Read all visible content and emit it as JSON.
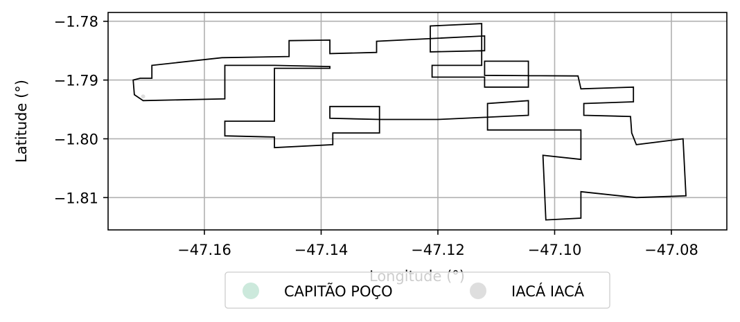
{
  "chart_data": {
    "type": "map",
    "xlabel": "Longitude (°)",
    "ylabel": "Latitude (°)",
    "xlim": [
      -47.1765,
      -47.0705
    ],
    "ylim": [
      -1.8155,
      -1.7785
    ],
    "x_ticks": [
      -47.16,
      -47.14,
      -47.12,
      -47.1,
      -47.08
    ],
    "x_tick_labels": [
      "−47.16",
      "−47.14",
      "−47.12",
      "−47.10",
      "−47.08"
    ],
    "y_ticks": [
      -1.78,
      -1.79,
      -1.8,
      -1.81
    ],
    "y_tick_labels": [
      "−1.78",
      "−1.79",
      "−1.80",
      "−1.81"
    ],
    "grid": true,
    "legend_position": "bottom-center",
    "legend": [
      {
        "label": "CAPITÃO POÇO",
        "color": "#cce9dc"
      },
      {
        "label": "IACÁ IACÁ",
        "color": "#dedede"
      }
    ],
    "boundary": {
      "color": "#000000",
      "coordinates": [
        [
          -47.1705,
          -1.7935
        ],
        [
          -47.172,
          -1.7925
        ],
        [
          -47.1722,
          -1.79
        ],
        [
          -47.171,
          -1.7897
        ],
        [
          -47.169,
          -1.7897
        ],
        [
          -47.169,
          -1.7875
        ],
        [
          -47.157,
          -1.7862
        ],
        [
          -47.1455,
          -1.786
        ],
        [
          -47.1455,
          -1.7833
        ],
        [
          -47.1385,
          -1.7832
        ],
        [
          -47.1385,
          -1.7855
        ],
        [
          -47.1305,
          -1.7853
        ],
        [
          -47.1305,
          -1.7834
        ],
        [
          -47.112,
          -1.7825
        ],
        [
          -47.112,
          -1.785
        ],
        [
          -47.1213,
          -1.7852
        ],
        [
          -47.1213,
          -1.7808
        ],
        [
          -47.1125,
          -1.7804
        ],
        [
          -47.1125,
          -1.7875
        ],
        [
          -47.121,
          -1.7875
        ],
        [
          -47.121,
          -1.7895
        ],
        [
          -47.112,
          -1.7895
        ],
        [
          -47.112,
          -1.7912
        ],
        [
          -47.1045,
          -1.7912
        ],
        [
          -47.1045,
          -1.7868
        ],
        [
          -47.112,
          -1.7868
        ],
        [
          -47.112,
          -1.7892
        ],
        [
          -47.096,
          -1.7893
        ],
        [
          -47.0955,
          -1.7915
        ],
        [
          -47.0865,
          -1.7912
        ],
        [
          -47.0865,
          -1.7937
        ],
        [
          -47.095,
          -1.794
        ],
        [
          -47.095,
          -1.796
        ],
        [
          -47.087,
          -1.7962
        ],
        [
          -47.0868,
          -1.799
        ],
        [
          -47.086,
          -1.801
        ],
        [
          -47.078,
          -1.8
        ],
        [
          -47.0775,
          -1.8097
        ],
        [
          -47.086,
          -1.81
        ],
        [
          -47.0955,
          -1.809
        ],
        [
          -47.0955,
          -1.8135
        ],
        [
          -47.1015,
          -1.8138
        ],
        [
          -47.102,
          -1.8028
        ],
        [
          -47.0955,
          -1.8035
        ],
        [
          -47.0955,
          -1.7985
        ],
        [
          -47.1115,
          -1.7985
        ],
        [
          -47.1115,
          -1.794
        ],
        [
          -47.1045,
          -1.7935
        ],
        [
          -47.1045,
          -1.796
        ],
        [
          -47.12,
          -1.7967
        ],
        [
          -47.13,
          -1.7967
        ],
        [
          -47.1385,
          -1.7965
        ],
        [
          -47.1385,
          -1.7945
        ],
        [
          -47.13,
          -1.7945
        ],
        [
          -47.13,
          -1.799
        ],
        [
          -47.138,
          -1.799
        ],
        [
          -47.138,
          -1.801
        ],
        [
          -47.148,
          -1.8015
        ],
        [
          -47.148,
          -1.7997
        ],
        [
          -47.1565,
          -1.7995
        ],
        [
          -47.1565,
          -1.797
        ],
        [
          -47.148,
          -1.797
        ],
        [
          -47.148,
          -1.788
        ],
        [
          -47.1385,
          -1.788
        ],
        [
          -47.1385,
          -1.7877
        ],
        [
          -47.148,
          -1.7875
        ],
        [
          -47.1565,
          -1.7875
        ],
        [
          -47.1565,
          -1.7932
        ],
        [
          -47.1705,
          -1.7935
        ]
      ]
    },
    "markers": [
      {
        "x": -47.1705,
        "y": -1.7928,
        "color": "#dedede"
      }
    ]
  }
}
